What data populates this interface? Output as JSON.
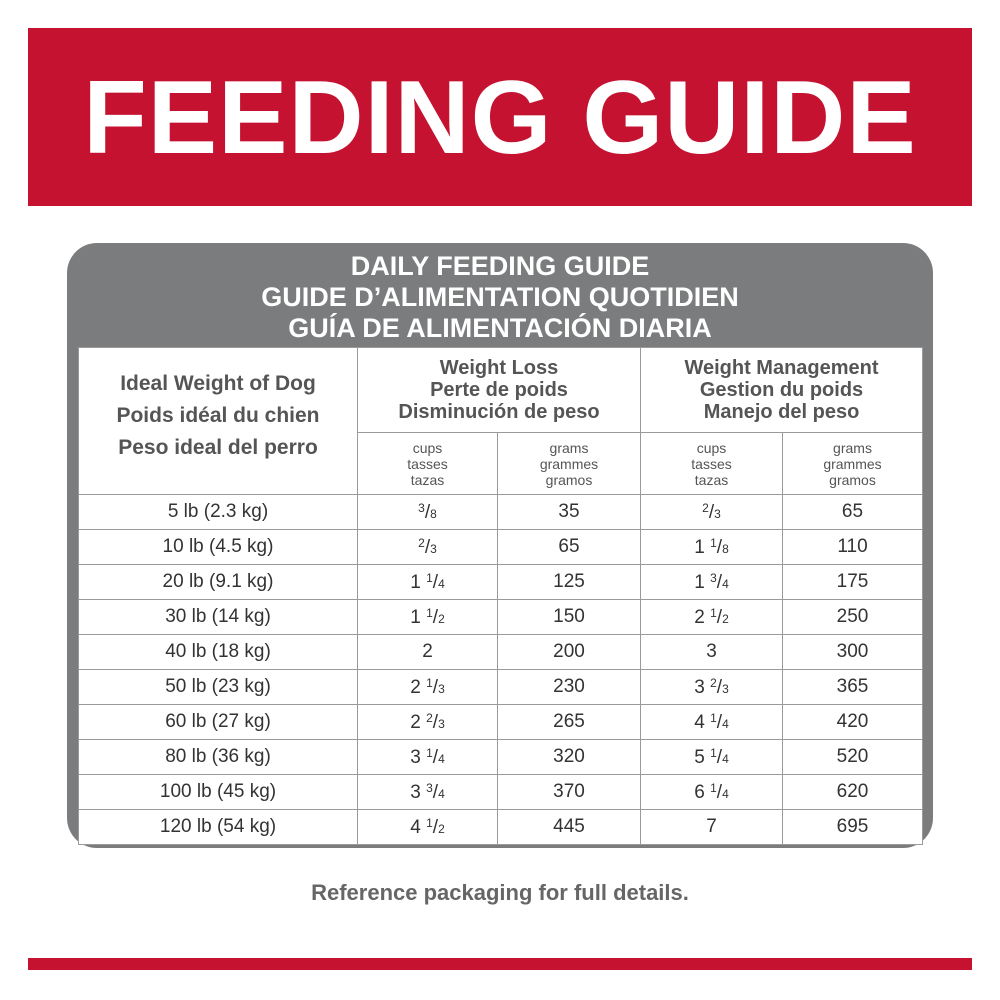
{
  "banner": {
    "title": "FEEDING GUIDE"
  },
  "table": {
    "title": [
      "DAILY FEEDING GUIDE",
      "GUIDE D’ALIMENTATION QUOTIDIEN",
      "GUÍA DE ALIMENTACIÓN DIARIA"
    ],
    "weight_header": [
      "Ideal Weight of Dog",
      "Poids idéal du chien",
      "Peso ideal del perro"
    ],
    "groups": [
      {
        "name": [
          "Weight Loss",
          "Perte de poids",
          "Disminución de peso"
        ],
        "units": [
          [
            "cups",
            "tasses",
            "tazas"
          ],
          [
            "grams",
            "grammes",
            "gramos"
          ]
        ]
      },
      {
        "name": [
          "Weight Management",
          "Gestion du poids",
          "Manejo del peso"
        ],
        "units": [
          [
            "cups",
            "tasses",
            "tazas"
          ],
          [
            "grams",
            "grammes",
            "gramos"
          ]
        ]
      }
    ],
    "rows": [
      [
        "5 lb (2.3 kg)",
        "3/8",
        "35",
        "2/3",
        "65"
      ],
      [
        "10 lb (4.5 kg)",
        "2/3",
        "65",
        "1 1/8",
        "110"
      ],
      [
        "20 lb (9.1 kg)",
        "1 1/4",
        "125",
        "1 3/4",
        "175"
      ],
      [
        "30 lb (14 kg)",
        "1 1/2",
        "150",
        "2 1/2",
        "250"
      ],
      [
        "40 lb (18 kg)",
        "2",
        "200",
        "3",
        "300"
      ],
      [
        "50 lb (23 kg)",
        "2 1/3",
        "230",
        "3 2/3",
        "365"
      ],
      [
        "60 lb (27 kg)",
        "2 2/3",
        "265",
        "4 1/4",
        "420"
      ],
      [
        "80 lb (36 kg)",
        "3 1/4",
        "320",
        "5 1/4",
        "520"
      ],
      [
        "100 lb (45 kg)",
        "3 3/4",
        "370",
        "6 1/4",
        "620"
      ],
      [
        "120 lb (54 kg)",
        "4 1/2",
        "445",
        "7",
        "695"
      ]
    ]
  },
  "footer": "Reference packaging for full details."
}
